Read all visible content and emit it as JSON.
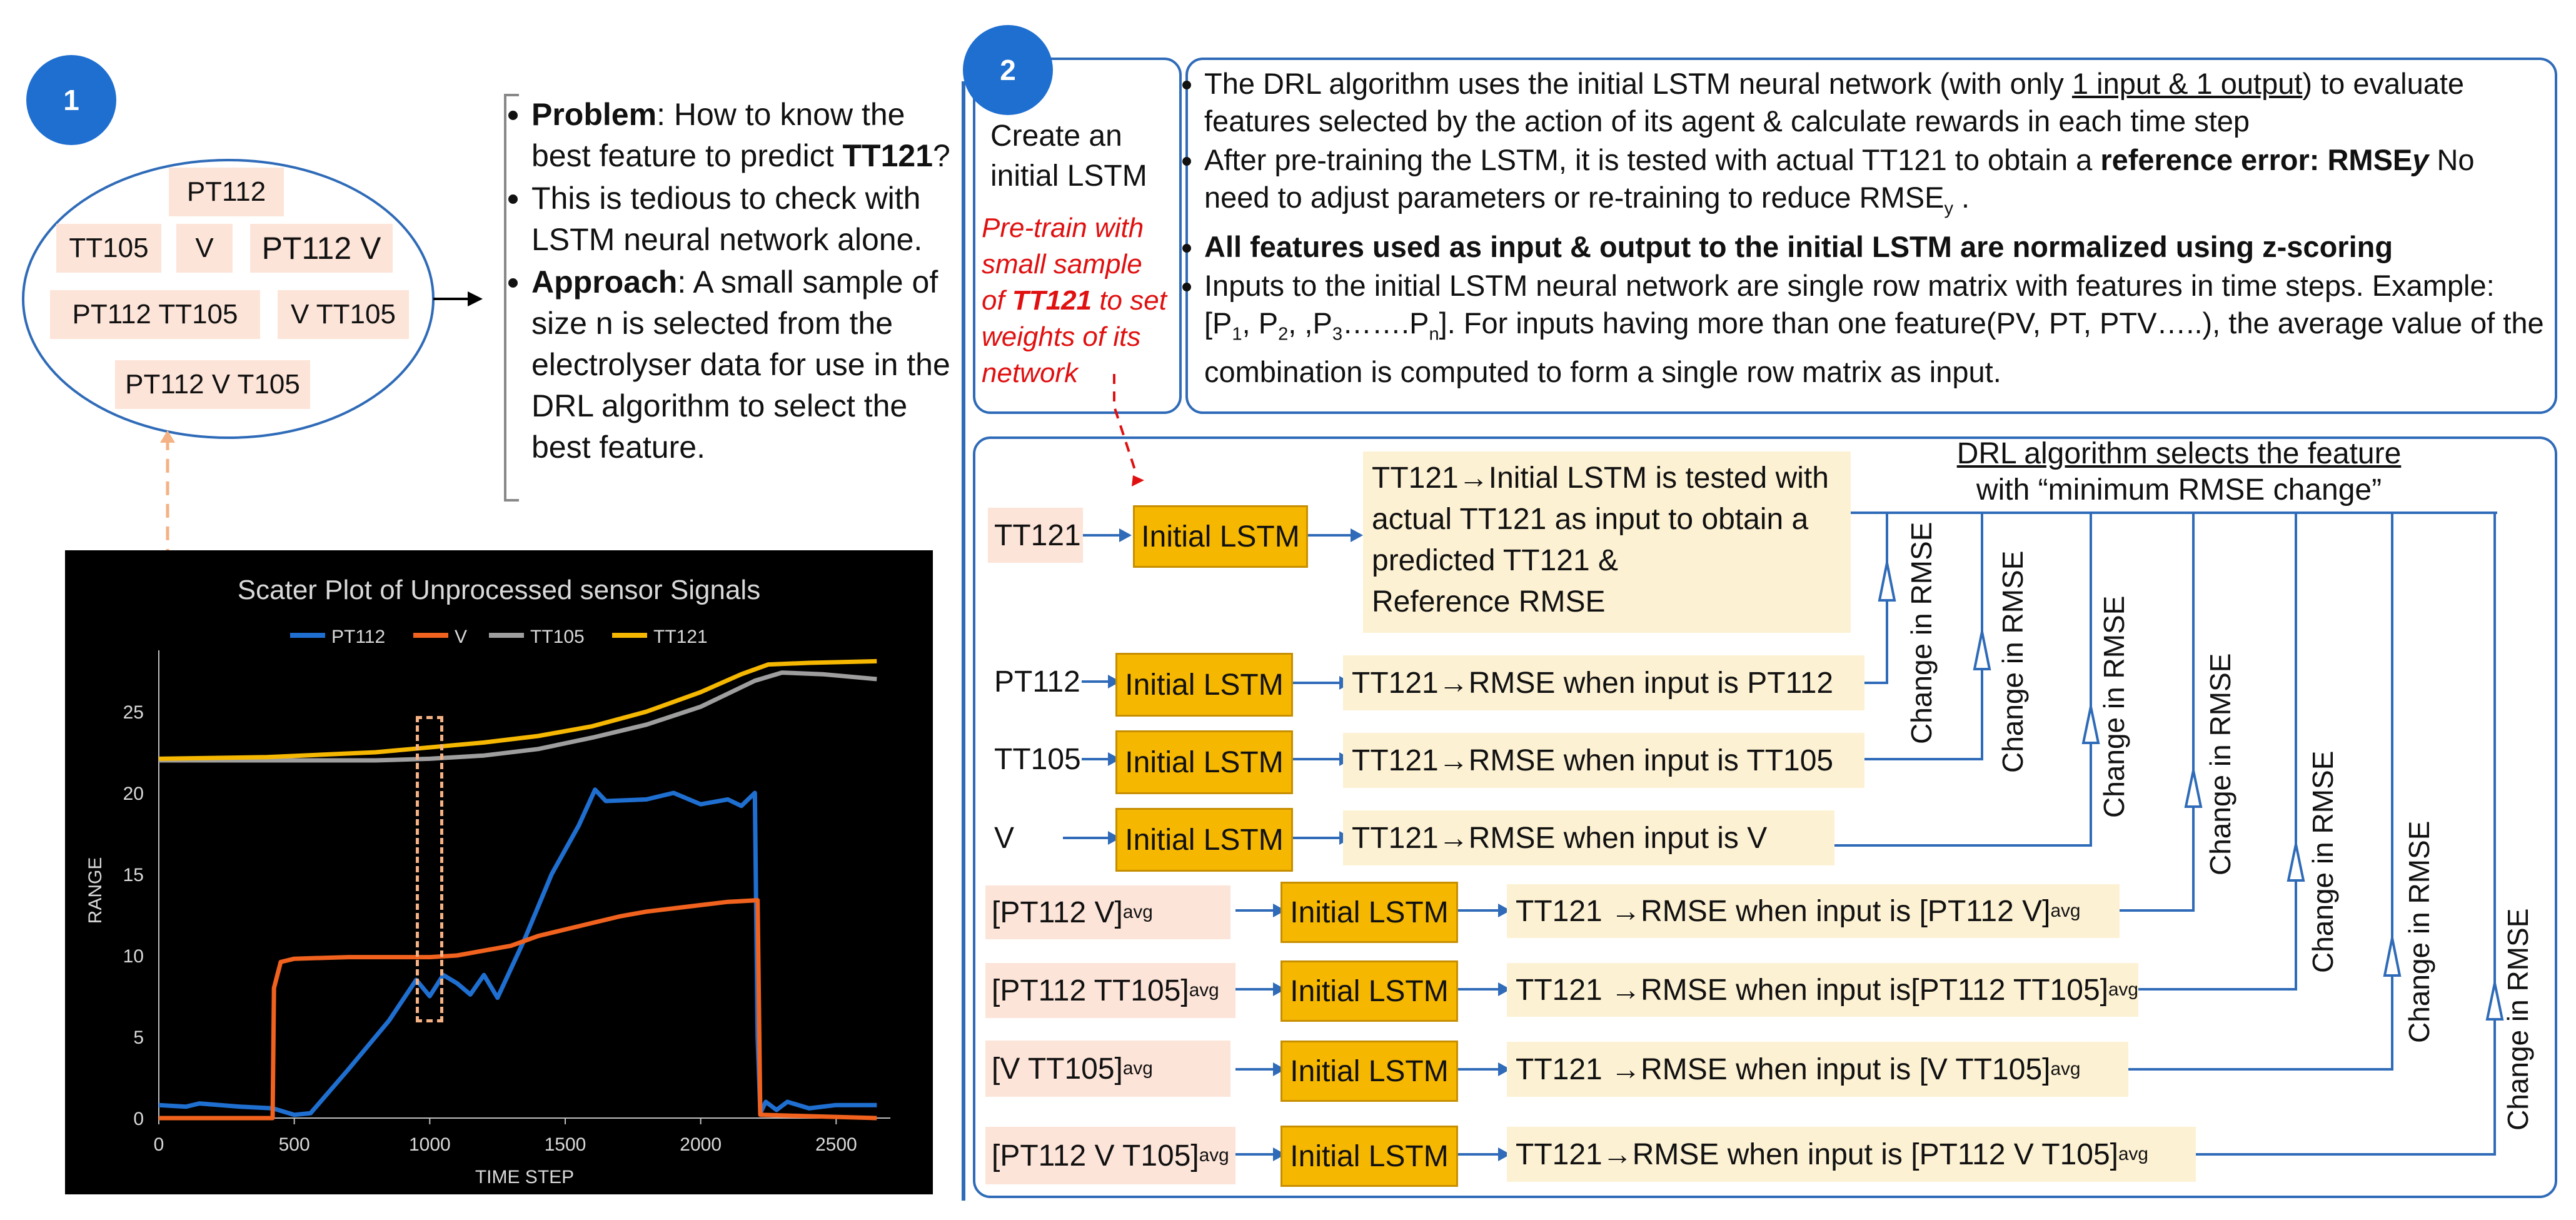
{
  "badge1": "1",
  "badge2": "2",
  "ellipse_chips": [
    "PT112",
    "TT105",
    "V",
    "PT112 V",
    "PT112 TT105",
    "V TT105",
    "PT112 V T105"
  ],
  "panel1_bullets": [
    {
      "bold": "Problem",
      "text": ": How to know the best feature to predict ",
      "bold2": "TT121",
      "text2": "?"
    },
    {
      "bold": "",
      "text": "This is tedious to check with LSTM neural network alone.",
      "bold2": "",
      "text2": ""
    },
    {
      "bold": "Approach",
      "text": ": A small sample of size n is selected from the electrolyser data for use in the DRL algorithm to select the best feature.",
      "bold2": "",
      "text2": ""
    }
  ],
  "create_lstm": {
    "title": "Create an initial LSTM",
    "red_1": "Pre-train with small sample of ",
    "red_bold": "TT121",
    "red_2": " to set weights of its network"
  },
  "panel2_bullets": {
    "b1_a": "The DRL algorithm uses the initial LSTM neural network (with only ",
    "b1_u": "1 input & 1 output",
    "b1_b": ") to evaluate features selected by the action of its agent & calculate rewards in each time step",
    "b2_a": "After pre-training the LSTM, it is tested with actual TT121 to obtain a ",
    "b2_bold": "reference error: RMSE",
    "b2_boldit": "y",
    "b2_b": " No need to adjust parameters or re-training to reduce RMSE",
    "b2_sub": "y",
    "b2_c": " .",
    "b3": "All features used as input & output to the initial LSTM are normalized using z-scoring",
    "b4_a": "Inputs to the initial LSTM neural network are single row matrix with features in time steps. Example: [P",
    "b4_s1": "1",
    "b4_b": ", P",
    "b4_s2": "2",
    "b4_c": ", ,P",
    "b4_s3": "3",
    "b4_d": "…….P",
    "b4_s4": "n",
    "b4_e": "]. For inputs having more than one feature(PV, PT, PTV…..), the average value of the combination is computed to form a single row matrix as input."
  },
  "drl": {
    "header_1": "DRL algorithm selects the feature",
    "header_2": "with “minimum RMSE change”",
    "lstm_label": "Initial LSTM",
    "change_label": "Change in RMSE",
    "ref_input": "TT121",
    "ref_text": "TT121→Initial LSTM is tested with actual TT121 as input to obtain a predicted TT121 &",
    "ref_text_2": "Reference RMSE",
    "rows": [
      {
        "input": "PT112",
        "sub": "",
        "result": "TT121→RMSE when input is PT112",
        "rsub": ""
      },
      {
        "input": "TT105",
        "sub": "",
        "result": "TT121→RMSE when input is TT105",
        "rsub": ""
      },
      {
        "input": "V",
        "sub": "",
        "result": "TT121→RMSE when input is V",
        "rsub": ""
      },
      {
        "input": "[PT112 V]",
        "sub": "avg",
        "result": "TT121 →RMSE when input is [PT112 V]",
        "rsub": "avg"
      },
      {
        "input": "[PT112 TT105]",
        "sub": "avg",
        "result": "TT121 →RMSE when input is[PT112 TT105]",
        "rsub": "avg"
      },
      {
        "input": "[V TT105]",
        "sub": "avg",
        "result": "TT121 →RMSE when input is [V TT105]",
        "rsub": "avg"
      },
      {
        "input": "[PT112 V T105]",
        "sub": "avg",
        "result": "TT121→RMSE when input is [PT112 V T105]",
        "rsub": "avg"
      }
    ]
  },
  "colors": {
    "PT112": "#1f6fd1",
    "V": "#f0621e",
    "TT105": "#9e9e9e",
    "TT121": "#f5b700",
    "accent": "#2f6bb8"
  },
  "chart_data": {
    "type": "line",
    "title": "Scater Plot of Unprocessed sensor Signals",
    "xlabel": "TIME STEP",
    "ylabel": "RANGE",
    "xlim": [
      0,
      2700
    ],
    "ylim": [
      0,
      28
    ],
    "xticks": [
      0,
      500,
      1000,
      1500,
      2000,
      2500
    ],
    "yticks": [
      0,
      5,
      10,
      15,
      20,
      25
    ],
    "legend_position": "top",
    "grid": false,
    "series": [
      {
        "name": "PT112",
        "color": "#1f6fd1",
        "points": [
          [
            0,
            0.8
          ],
          [
            100,
            0.7
          ],
          [
            150,
            0.9
          ],
          [
            300,
            0.7
          ],
          [
            420,
            0.6
          ],
          [
            500,
            0.2
          ],
          [
            560,
            0.3
          ],
          [
            700,
            3
          ],
          [
            850,
            6
          ],
          [
            950,
            8.5
          ],
          [
            1000,
            7.5
          ],
          [
            1050,
            8.8
          ],
          [
            1100,
            8.3
          ],
          [
            1150,
            7.6
          ],
          [
            1200,
            8.8
          ],
          [
            1250,
            7.4
          ],
          [
            1350,
            11
          ],
          [
            1450,
            15
          ],
          [
            1550,
            18
          ],
          [
            1610,
            20.2
          ],
          [
            1650,
            19.5
          ],
          [
            1800,
            19.6
          ],
          [
            1900,
            20
          ],
          [
            2000,
            19.3
          ],
          [
            2100,
            19.6
          ],
          [
            2150,
            19.2
          ],
          [
            2200,
            20
          ],
          [
            2210,
            5
          ],
          [
            2220,
            0.3
          ],
          [
            2240,
            1
          ],
          [
            2280,
            0.5
          ],
          [
            2320,
            1
          ],
          [
            2400,
            0.6
          ],
          [
            2500,
            0.8
          ],
          [
            2650,
            0.8
          ]
        ]
      },
      {
        "name": "V",
        "color": "#f0621e",
        "points": [
          [
            0,
            0
          ],
          [
            420,
            0
          ],
          [
            425,
            8
          ],
          [
            450,
            9.6
          ],
          [
            500,
            9.8
          ],
          [
            700,
            9.9
          ],
          [
            900,
            9.9
          ],
          [
            1000,
            9.9
          ],
          [
            1100,
            10
          ],
          [
            1200,
            10.3
          ],
          [
            1300,
            10.6
          ],
          [
            1400,
            11.2
          ],
          [
            1500,
            11.6
          ],
          [
            1600,
            12
          ],
          [
            1700,
            12.4
          ],
          [
            1800,
            12.7
          ],
          [
            1900,
            12.9
          ],
          [
            2000,
            13.1
          ],
          [
            2100,
            13.3
          ],
          [
            2210,
            13.4
          ],
          [
            2220,
            0.2
          ],
          [
            2650,
            0
          ]
        ]
      },
      {
        "name": "TT105",
        "color": "#9e9e9e",
        "points": [
          [
            0,
            22
          ],
          [
            400,
            22
          ],
          [
            800,
            22
          ],
          [
            1000,
            22.1
          ],
          [
            1200,
            22.3
          ],
          [
            1400,
            22.7
          ],
          [
            1600,
            23.4
          ],
          [
            1800,
            24.2
          ],
          [
            2000,
            25.3
          ],
          [
            2200,
            26.9
          ],
          [
            2300,
            27.4
          ],
          [
            2450,
            27.3
          ],
          [
            2650,
            27
          ]
        ]
      },
      {
        "name": "TT121",
        "color": "#f5b700",
        "points": [
          [
            0,
            22.1
          ],
          [
            400,
            22.2
          ],
          [
            800,
            22.5
          ],
          [
            1000,
            22.8
          ],
          [
            1200,
            23.1
          ],
          [
            1400,
            23.5
          ],
          [
            1600,
            24.1
          ],
          [
            1800,
            25
          ],
          [
            2000,
            26.2
          ],
          [
            2150,
            27.3
          ],
          [
            2250,
            27.9
          ],
          [
            2400,
            28
          ],
          [
            2650,
            28.1
          ]
        ]
      }
    ]
  }
}
